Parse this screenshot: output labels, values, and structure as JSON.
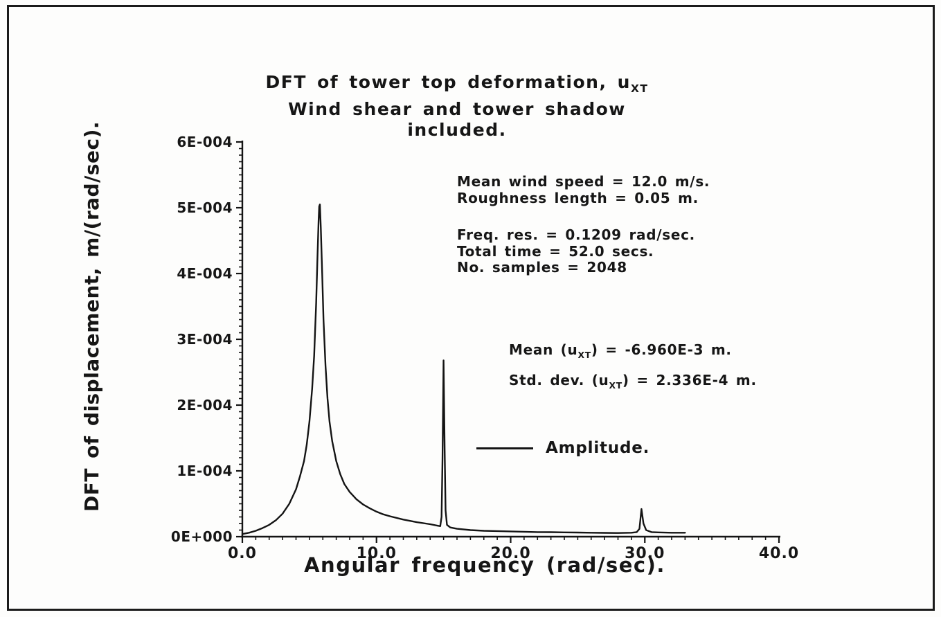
{
  "page": {
    "background": "#fdfdfc",
    "frame_color": "#1b1b1b"
  },
  "chart_data": {
    "type": "line",
    "title": {
      "line1_pre": "DFT of tower top deformation, u",
      "line1_sub": "XT",
      "line2": "Wind shear and tower shadow included."
    },
    "xlabel": "Angular frequency (rad/sec).",
    "ylabel": "DFT of displacement, m/(rad/sec).",
    "xlim": [
      0,
      40
    ],
    "ylim": [
      0,
      0.0006
    ],
    "x_ticks": [
      {
        "value": 0,
        "label": "0.0"
      },
      {
        "value": 10,
        "label": "10.0"
      },
      {
        "value": 20,
        "label": "20.0"
      },
      {
        "value": 30,
        "label": "30.0"
      },
      {
        "value": 40,
        "label": "40.0"
      }
    ],
    "x_minor_step": 1,
    "y_ticks": [
      {
        "value": 0,
        "label": "0E+000"
      },
      {
        "value": 0.0001,
        "label": "1E-004"
      },
      {
        "value": 0.0002,
        "label": "2E-004"
      },
      {
        "value": 0.0003,
        "label": "3E-004"
      },
      {
        "value": 0.0004,
        "label": "4E-004"
      },
      {
        "value": 0.0005,
        "label": "5E-004"
      },
      {
        "value": 0.0006,
        "label": "6E-004"
      }
    ],
    "y_minor_step": 1e-05,
    "grid": false,
    "legend": {
      "label": "Amplitude.",
      "position": "center-right"
    },
    "line_color": "#141414",
    "annotations": {
      "wind": [
        "Mean wind speed = 12.0 m/s.",
        "Roughness length = 0.05 m."
      ],
      "sampling": [
        "Freq. res. = 0.1209 rad/sec.",
        "Total time = 52.0 secs.",
        "No. samples = 2048"
      ],
      "mean": {
        "pre": "Mean (u",
        "sub": "XT",
        "post": ") = -6.960E-3 m."
      },
      "std": {
        "pre": "Std. dev. (u",
        "sub": "XT",
        "post": ") = 2.336E-4 m."
      }
    },
    "series": [
      {
        "name": "Amplitude",
        "points": [
          [
            0.0,
            4e-06
          ],
          [
            0.5,
            6e-06
          ],
          [
            1.0,
            9e-06
          ],
          [
            1.5,
            1.3e-05
          ],
          [
            2.0,
            1.8e-05
          ],
          [
            2.5,
            2.5e-05
          ],
          [
            3.0,
            3.5e-05
          ],
          [
            3.5,
            5e-05
          ],
          [
            4.0,
            7.2e-05
          ],
          [
            4.3,
            9.2e-05
          ],
          [
            4.6,
            0.000115
          ],
          [
            4.8,
            0.00014
          ],
          [
            5.0,
            0.000175
          ],
          [
            5.2,
            0.000225
          ],
          [
            5.35,
            0.000275
          ],
          [
            5.5,
            0.000355
          ],
          [
            5.6,
            0.000425
          ],
          [
            5.68,
            0.00048
          ],
          [
            5.73,
            0.000502
          ],
          [
            5.78,
            0.000505
          ],
          [
            5.85,
            0.00047
          ],
          [
            5.95,
            0.0004
          ],
          [
            6.05,
            0.00033
          ],
          [
            6.2,
            0.00026
          ],
          [
            6.35,
            0.00021
          ],
          [
            6.5,
            0.000175
          ],
          [
            6.7,
            0.000145
          ],
          [
            7.0,
            0.000115
          ],
          [
            7.3,
            9.5e-05
          ],
          [
            7.6,
            8e-05
          ],
          [
            8.0,
            6.8e-05
          ],
          [
            8.5,
            5.7e-05
          ],
          [
            9.0,
            4.9e-05
          ],
          [
            9.5,
            4.3e-05
          ],
          [
            10.0,
            3.8e-05
          ],
          [
            10.5,
            3.4e-05
          ],
          [
            11.0,
            3.1e-05
          ],
          [
            12.0,
            2.6e-05
          ],
          [
            13.0,
            2.2e-05
          ],
          [
            14.0,
            1.9e-05
          ],
          [
            14.5,
            1.7e-05
          ],
          [
            14.75,
            1.6e-05
          ],
          [
            14.85,
            3e-05
          ],
          [
            14.92,
            0.00012
          ],
          [
            15.0,
            0.000268
          ],
          [
            15.08,
            0.00013
          ],
          [
            15.15,
            4e-05
          ],
          [
            15.25,
            1.8e-05
          ],
          [
            15.5,
            1.4e-05
          ],
          [
            16.0,
            1.2e-05
          ],
          [
            17.0,
            1e-05
          ],
          [
            18.0,
            9e-06
          ],
          [
            19.0,
            8.5e-06
          ],
          [
            20.0,
            8e-06
          ],
          [
            21.0,
            7.5e-06
          ],
          [
            22.0,
            7e-06
          ],
          [
            23.0,
            6.8e-06
          ],
          [
            24.0,
            6.5e-06
          ],
          [
            25.0,
            6.3e-06
          ],
          [
            26.0,
            6e-06
          ],
          [
            27.0,
            5.8e-06
          ],
          [
            28.0,
            5.6e-06
          ],
          [
            29.0,
            6e-06
          ],
          [
            29.4,
            7e-06
          ],
          [
            29.6,
            1.2e-05
          ],
          [
            29.75,
            4.2e-05
          ],
          [
            29.9,
            2e-05
          ],
          [
            30.1,
            1e-05
          ],
          [
            30.5,
            7e-06
          ],
          [
            31.0,
            6.5e-06
          ],
          [
            32.0,
            6e-06
          ],
          [
            33.0,
            6e-06
          ]
        ]
      }
    ]
  }
}
